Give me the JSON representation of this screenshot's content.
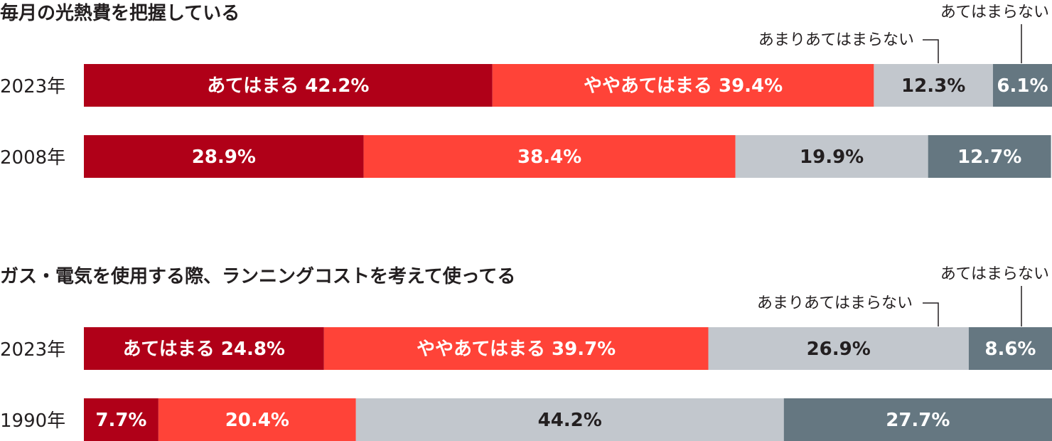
{
  "colors": {
    "atehamaru": "#b00018",
    "yaya": "#ff4338",
    "amari": "#c2c7cd",
    "atehamaranai": "#657781",
    "light_text": "#ffffff",
    "dark_text": "#231f20"
  },
  "chart_data": [
    {
      "type": "bar",
      "orientation": "horizontal",
      "stacked": true,
      "title": "毎月の光熱費を把握している",
      "categories": [
        "2023年",
        "2008年"
      ],
      "series": [
        {
          "name": "あてはまる",
          "values": [
            42.2,
            28.9
          ]
        },
        {
          "name": "ややあてはまる",
          "values": [
            39.4,
            38.4
          ]
        },
        {
          "name": "あまりあてはまらない",
          "values": [
            12.3,
            19.9
          ]
        },
        {
          "name": "あてはまらない",
          "values": [
            6.1,
            12.7
          ]
        }
      ],
      "value_labels": [
        [
          "あてはまる 42.2%",
          "ややあてはまる 39.4%",
          "12.3%",
          "6.1%"
        ],
        [
          "28.9%",
          "38.4%",
          "19.9%",
          "12.7%"
        ]
      ],
      "callouts": [
        "あまりあてはまらない",
        "あてはまらない"
      ],
      "xlim": [
        0,
        100
      ],
      "grid": false
    },
    {
      "type": "bar",
      "orientation": "horizontal",
      "stacked": true,
      "title": "ガス・電気を使用する際、ランニングコストを考えて使ってる",
      "categories": [
        "2023年",
        "1990年"
      ],
      "series": [
        {
          "name": "あてはまる",
          "values": [
            24.8,
            7.7
          ]
        },
        {
          "name": "ややあてはまる",
          "values": [
            39.7,
            20.4
          ]
        },
        {
          "name": "あまりあてはまらない",
          "values": [
            26.9,
            44.2
          ]
        },
        {
          "name": "あてはまらない",
          "values": [
            8.6,
            27.7
          ]
        }
      ],
      "value_labels": [
        [
          "あてはまる 24.8%",
          "ややあてはまる 39.7%",
          "26.9%",
          "8.6%"
        ],
        [
          "7.7%",
          "20.4%",
          "44.2%",
          "27.7%"
        ]
      ],
      "callouts": [
        "あまりあてはまらない",
        "あてはまらない"
      ],
      "xlim": [
        0,
        100
      ],
      "grid": false
    }
  ]
}
